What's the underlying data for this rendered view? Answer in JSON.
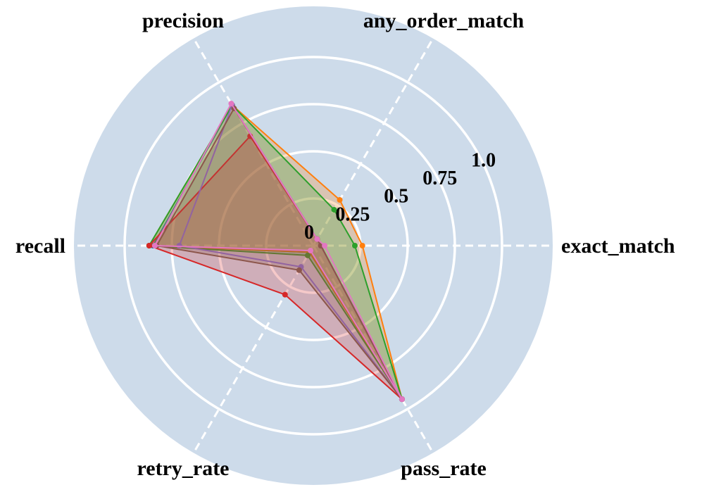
{
  "chart_data": {
    "type": "radar",
    "axes": [
      "exact_match",
      "any_order_match",
      "precision",
      "recall",
      "retry_rate",
      "pass_rate"
    ],
    "rlim": [
      0,
      1.0
    ],
    "ticks": [
      {
        "value": 0,
        "label": "0"
      },
      {
        "value": 0.25,
        "label": "0.25"
      },
      {
        "value": 0.5,
        "label": "0.5"
      },
      {
        "value": 0.75,
        "label": "0.75"
      },
      {
        "value": 1.0,
        "label": "1.0"
      }
    ],
    "grid": true,
    "background_color": "#cddbea",
    "series": [
      {
        "color": "#1f77b4",
        "fill": false,
        "values": [
          0.04,
          0.04,
          0.86,
          0.85,
          0.04,
          0.94
        ]
      },
      {
        "color": "#ff7f0e",
        "fill": true,
        "values": [
          0.26,
          0.28,
          0.86,
          0.87,
          0.04,
          0.94
        ]
      },
      {
        "color": "#2ca02c",
        "fill": true,
        "values": [
          0.22,
          0.22,
          0.86,
          0.87,
          0.06,
          0.94
        ]
      },
      {
        "color": "#d62728",
        "fill": true,
        "values": [
          0.04,
          0.04,
          0.67,
          0.87,
          0.3,
          0.94
        ]
      },
      {
        "color": "#9467bd",
        "fill": false,
        "values": [
          0.04,
          0.04,
          0.86,
          0.71,
          0.13,
          0.94
        ]
      },
      {
        "color": "#8c564b",
        "fill": true,
        "values": [
          0.04,
          0.04,
          0.84,
          0.83,
          0.15,
          0.94
        ]
      },
      {
        "color": "#e377c2",
        "fill": false,
        "values": [
          0.06,
          0.04,
          0.87,
          0.84,
          0.03,
          0.94
        ]
      }
    ]
  }
}
